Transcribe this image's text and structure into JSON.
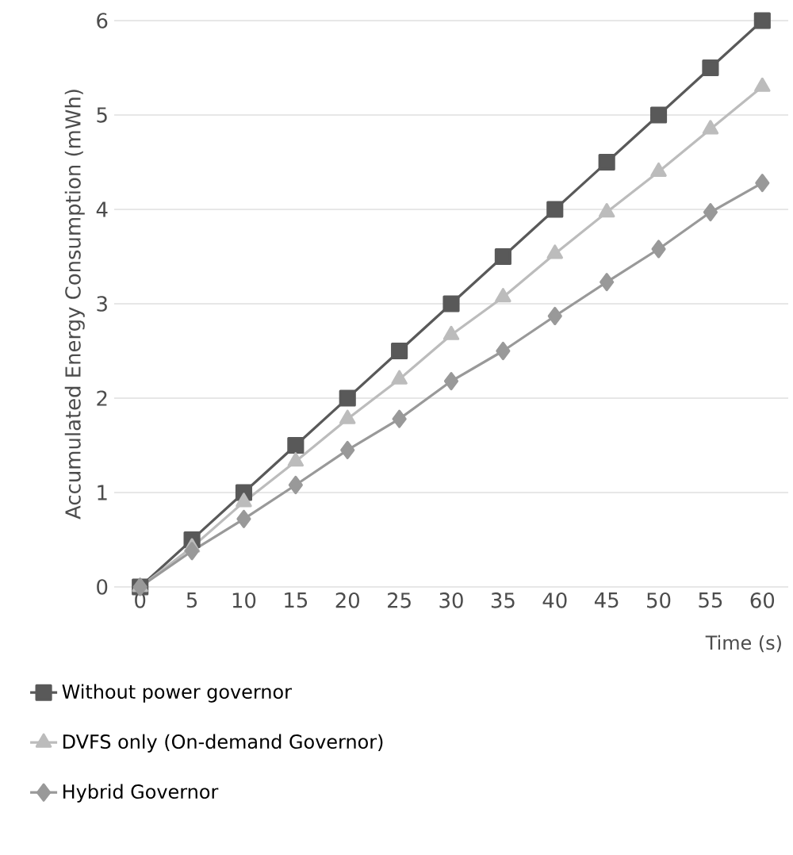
{
  "chart_data": {
    "type": "line",
    "xlabel": "Time (s)",
    "ylabel": "Accumulated Energy Consumption (mWh)",
    "categories": [
      "0",
      "5",
      "10",
      "15",
      "20",
      "25",
      "30",
      "35",
      "40",
      "45",
      "50",
      "55",
      "60"
    ],
    "series": [
      {
        "name": "Without power governor",
        "color": "#595959",
        "marker": "square",
        "values": [
          0,
          0.5,
          1,
          1.5,
          2,
          2.5,
          3,
          3.5,
          4,
          4.5,
          5,
          5.5,
          6
        ]
      },
      {
        "name": "DVFS only (On-demand Governor)",
        "color": "#bcbcbc",
        "marker": "triangle",
        "values": [
          0,
          0.42,
          0.9,
          1.33,
          1.78,
          2.2,
          2.67,
          3.07,
          3.53,
          3.97,
          4.4,
          4.85,
          5.3
        ]
      },
      {
        "name": "Hybrid Governor",
        "color": "#999999",
        "marker": "diamond",
        "values": [
          0,
          0.38,
          0.72,
          1.08,
          1.45,
          1.78,
          2.18,
          2.5,
          2.87,
          3.23,
          3.58,
          3.97,
          4.28
        ]
      }
    ],
    "ylim": [
      0,
      6
    ],
    "yticks": [
      0,
      1,
      2,
      3,
      4,
      5,
      6
    ],
    "grid": "y",
    "legend": "bottom"
  }
}
